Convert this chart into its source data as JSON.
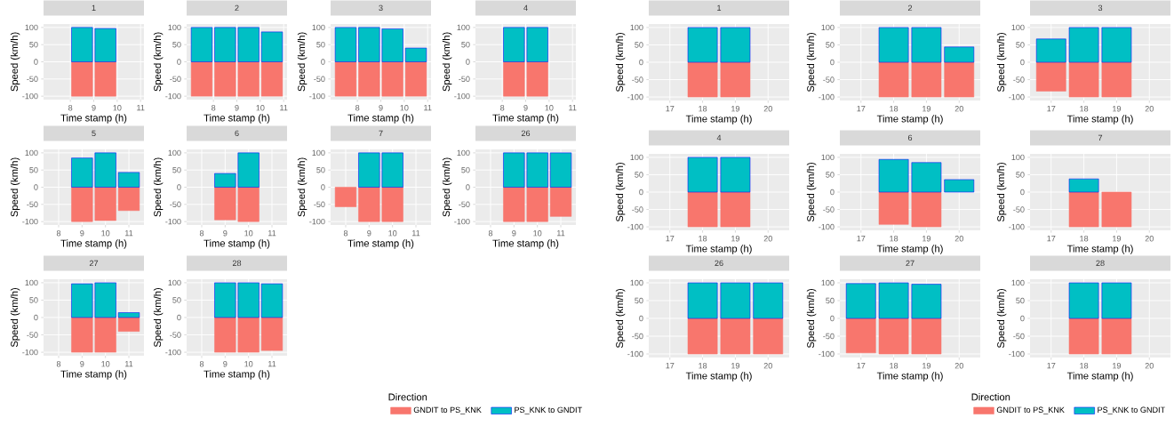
{
  "chart_data": [
    {
      "type": "bar",
      "stacked": true,
      "title": "1",
      "xlabel": "Time stamp (h)",
      "ylabel": "Speed (km/h)",
      "x": [
        8.5,
        9.5
      ],
      "series": [
        {
          "color": "#f8766d",
          "values": [
            -100,
            -100
          ]
        },
        {
          "color": "#00bfc4",
          "values": [
            100,
            97
          ]
        }
      ],
      "xlim": [
        6.855,
        11.145
      ],
      "ylim": [
        -110,
        110
      ],
      "xticks": [
        8,
        9,
        10,
        11
      ],
      "yticks": [
        -100,
        -50,
        0,
        50,
        100
      ],
      "grid": true
    },
    {
      "type": "bar",
      "stacked": true,
      "title": "2",
      "xlabel": "Time stamp (h)",
      "ylabel": "Speed (km/h)",
      "x": [
        7.5,
        8.5,
        9.5,
        10.5
      ],
      "series": [
        {
          "color": "#f8766d",
          "values": [
            -100,
            -100,
            -100,
            -100
          ]
        },
        {
          "color": "#00bfc4",
          "values": [
            100,
            100,
            100,
            87
          ]
        }
      ],
      "xlim": [
        6.855,
        11.145
      ],
      "ylim": [
        -110,
        110
      ],
      "xticks": [
        8,
        9,
        10,
        11
      ],
      "yticks": [
        -100,
        -50,
        0,
        50,
        100
      ],
      "grid": true
    },
    {
      "type": "bar",
      "stacked": true,
      "title": "3",
      "xlabel": "Time stamp (h)",
      "ylabel": "Speed (km/h)",
      "x": [
        7.5,
        8.5,
        9.5,
        10.5
      ],
      "series": [
        {
          "color": "#f8766d",
          "values": [
            -100,
            -100,
            -100,
            -100
          ]
        },
        {
          "color": "#00bfc4",
          "values": [
            100,
            100,
            96,
            40
          ]
        }
      ],
      "xlim": [
        6.855,
        11.145
      ],
      "ylim": [
        -110,
        110
      ],
      "xticks": [
        8,
        9,
        10,
        11
      ],
      "yticks": [
        -100,
        -50,
        0,
        50,
        100
      ],
      "grid": true
    },
    {
      "type": "bar",
      "stacked": true,
      "title": "4",
      "xlabel": "Time stamp (h)",
      "ylabel": "Speed (km/h)",
      "x": [
        8.5,
        9.5
      ],
      "series": [
        {
          "color": "#f8766d",
          "values": [
            -100,
            -100
          ]
        },
        {
          "color": "#00bfc4",
          "values": [
            100,
            100
          ]
        }
      ],
      "xlim": [
        6.855,
        11.145
      ],
      "ylim": [
        -110,
        110
      ],
      "xticks": [
        8,
        9,
        10,
        11
      ],
      "yticks": [
        -100,
        -50,
        0,
        50,
        100
      ],
      "grid": true
    },
    {
      "type": "bar",
      "stacked": true,
      "title": "5",
      "xlabel": "Time stamp (h)",
      "ylabel": "Speed (km/h)",
      "x": [
        9,
        10,
        11
      ],
      "series": [
        {
          "color": "#f8766d",
          "values": [
            -100,
            -97,
            -68
          ]
        },
        {
          "color": "#00bfc4",
          "values": [
            85,
            100,
            43
          ]
        }
      ],
      "xlim": [
        7.355,
        11.645
      ],
      "ylim": [
        -110,
        110
      ],
      "xticks": [
        8,
        9,
        10,
        11
      ],
      "yticks": [
        -100,
        -50,
        0,
        50,
        100
      ],
      "grid": true
    },
    {
      "type": "bar",
      "stacked": true,
      "title": "6",
      "xlabel": "Time stamp (h)",
      "ylabel": "Speed (km/h)",
      "x": [
        9,
        10
      ],
      "series": [
        {
          "color": "#f8766d",
          "values": [
            -95,
            -100
          ]
        },
        {
          "color": "#00bfc4",
          "values": [
            40,
            100
          ]
        }
      ],
      "xlim": [
        7.355,
        11.645
      ],
      "ylim": [
        -110,
        110
      ],
      "xticks": [
        8,
        9,
        10,
        11
      ],
      "yticks": [
        -100,
        -50,
        0,
        50,
        100
      ],
      "grid": true
    },
    {
      "type": "bar",
      "stacked": true,
      "title": "7",
      "xlabel": "Time stamp (h)",
      "ylabel": "Speed (km/h)",
      "x": [
        8,
        9,
        10
      ],
      "series": [
        {
          "color": "#f8766d",
          "values": [
            -57,
            -100,
            -100
          ]
        },
        {
          "color": "#00bfc4",
          "values": [
            null,
            100,
            100
          ]
        }
      ],
      "xlim": [
        7.355,
        11.645
      ],
      "ylim": [
        -110,
        110
      ],
      "xticks": [
        8,
        9,
        10,
        11
      ],
      "yticks": [
        -100,
        -50,
        0,
        50,
        100
      ],
      "grid": true
    },
    {
      "type": "bar",
      "stacked": true,
      "title": "26",
      "xlabel": "Time stamp (h)",
      "ylabel": "Speed (km/h)",
      "x": [
        9,
        10,
        11
      ],
      "series": [
        {
          "color": "#f8766d",
          "values": [
            -100,
            -100,
            -85
          ]
        },
        {
          "color": "#00bfc4",
          "values": [
            100,
            100,
            100
          ]
        }
      ],
      "xlim": [
        7.355,
        11.645
      ],
      "ylim": [
        -110,
        110
      ],
      "xticks": [
        8,
        9,
        10,
        11
      ],
      "yticks": [
        -100,
        -50,
        0,
        50,
        100
      ],
      "grid": true
    },
    {
      "type": "bar",
      "stacked": true,
      "title": "27",
      "xlabel": "Time stamp (h)",
      "ylabel": "Speed (km/h)",
      "x": [
        9,
        10,
        11
      ],
      "series": [
        {
          "color": "#f8766d",
          "values": [
            -100,
            -100,
            -40
          ]
        },
        {
          "color": "#00bfc4",
          "values": [
            97,
            100,
            14
          ]
        }
      ],
      "xlim": [
        7.355,
        11.645
      ],
      "ylim": [
        -110,
        110
      ],
      "xticks": [
        8,
        9,
        10,
        11
      ],
      "yticks": [
        -100,
        -50,
        0,
        50,
        100
      ],
      "grid": true
    },
    {
      "type": "bar",
      "stacked": true,
      "title": "28",
      "xlabel": "Time stamp (h)",
      "ylabel": "Speed (km/h)",
      "x": [
        9,
        10,
        11
      ],
      "series": [
        {
          "name": "GNDIT to PS_KNK",
          "color": "#f8766d",
          "values": [
            -100,
            -100,
            -95
          ]
        },
        {
          "name": "PS_KNK to GNDIT",
          "color": "#00bfc4",
          "values": [
            100,
            100,
            97
          ]
        }
      ],
      "xlim": [
        7.355,
        11.645
      ],
      "ylim": [
        -110,
        110
      ],
      "xticks": [
        8,
        9,
        10,
        11
      ],
      "yticks": [
        -100,
        -50,
        0,
        50,
        100
      ],
      "grid": true,
      "legend": "bottom right",
      "legend_title": "Direction"
    },
    {
      "type": "bar",
      "stacked": true,
      "title": "1",
      "xlabel": "Time stamp (h)",
      "ylabel": "Speed (km/h)",
      "x": [
        18,
        19
      ],
      "series": [
        {
          "color": "#f8766d",
          "values": [
            -100,
            -100
          ]
        },
        {
          "color": "#00bfc4",
          "values": [
            100,
            100
          ]
        }
      ],
      "xlim": [
        16.355,
        20.645
      ],
      "ylim": [
        -110,
        110
      ],
      "xticks": [
        17,
        18,
        19,
        20
      ],
      "yticks": [
        -100,
        -50,
        0,
        50,
        100
      ],
      "grid": true
    },
    {
      "type": "bar",
      "stacked": true,
      "title": "2",
      "xlabel": "Time stamp (h)",
      "ylabel": "Speed (km/h)",
      "x": [
        18,
        19,
        20
      ],
      "series": [
        {
          "color": "#f8766d",
          "values": [
            -100,
            -100,
            -100
          ]
        },
        {
          "color": "#00bfc4",
          "values": [
            100,
            100,
            44
          ]
        }
      ],
      "xlim": [
        16.355,
        20.645
      ],
      "ylim": [
        -110,
        110
      ],
      "xticks": [
        17,
        18,
        19,
        20
      ],
      "yticks": [
        -100,
        -50,
        0,
        50,
        100
      ],
      "grid": true
    },
    {
      "type": "bar",
      "stacked": true,
      "title": "3",
      "xlabel": "Time stamp (h)",
      "ylabel": "Speed (km/h)",
      "x": [
        17,
        18,
        19
      ],
      "series": [
        {
          "color": "#f8766d",
          "values": [
            -83,
            -100,
            -100
          ]
        },
        {
          "color": "#00bfc4",
          "values": [
            67,
            100,
            100
          ]
        }
      ],
      "xlim": [
        16.355,
        20.645
      ],
      "ylim": [
        -110,
        110
      ],
      "xticks": [
        17,
        18,
        19,
        20
      ],
      "yticks": [
        -100,
        -50,
        0,
        50,
        100
      ],
      "grid": true
    },
    {
      "type": "bar",
      "stacked": true,
      "title": "4",
      "xlabel": "Time stamp (h)",
      "ylabel": "Speed (km/h)",
      "x": [
        18,
        19
      ],
      "series": [
        {
          "color": "#f8766d",
          "values": [
            -100,
            -100
          ]
        },
        {
          "color": "#00bfc4",
          "values": [
            100,
            100
          ]
        }
      ],
      "xlim": [
        16.355,
        20.645
      ],
      "ylim": [
        -110,
        110
      ],
      "xticks": [
        17,
        18,
        19,
        20
      ],
      "yticks": [
        -100,
        -50,
        0,
        50,
        100
      ],
      "grid": true
    },
    {
      "type": "bar",
      "stacked": true,
      "title": "6",
      "xlabel": "Time stamp (h)",
      "ylabel": "Speed (km/h)",
      "x": [
        18,
        19,
        20
      ],
      "series": [
        {
          "color": "#f8766d",
          "values": [
            -93,
            -100,
            null
          ]
        },
        {
          "color": "#00bfc4",
          "values": [
            94,
            85,
            36
          ]
        }
      ],
      "xlim": [
        16.355,
        20.645
      ],
      "ylim": [
        -110,
        110
      ],
      "xticks": [
        17,
        18,
        19,
        20
      ],
      "yticks": [
        -100,
        -50,
        0,
        50,
        100
      ],
      "grid": true
    },
    {
      "type": "bar",
      "stacked": true,
      "title": "7",
      "xlabel": "Time stamp (h)",
      "ylabel": "Speed (km/h)",
      "x": [
        18,
        19
      ],
      "series": [
        {
          "color": "#f8766d",
          "values": [
            -100,
            -100
          ]
        },
        {
          "color": "#00bfc4",
          "values": [
            38,
            null
          ]
        }
      ],
      "xlim": [
        16.355,
        20.645
      ],
      "ylim": [
        -110,
        110
      ],
      "xticks": [
        17,
        18,
        19,
        20
      ],
      "yticks": [
        -100,
        -50,
        0,
        50,
        100
      ],
      "grid": true
    },
    {
      "type": "bar",
      "stacked": true,
      "title": "26",
      "xlabel": "Time stamp (h)",
      "ylabel": "Speed (km/h)",
      "x": [
        18,
        19,
        20
      ],
      "series": [
        {
          "color": "#f8766d",
          "values": [
            -100,
            -100,
            -100
          ]
        },
        {
          "color": "#00bfc4",
          "values": [
            100,
            100,
            100
          ]
        }
      ],
      "xlim": [
        16.355,
        20.645
      ],
      "ylim": [
        -110,
        110
      ],
      "xticks": [
        17,
        18,
        19,
        20
      ],
      "yticks": [
        -100,
        -50,
        0,
        50,
        100
      ],
      "grid": true
    },
    {
      "type": "bar",
      "stacked": true,
      "title": "27",
      "xlabel": "Time stamp (h)",
      "ylabel": "Speed (km/h)",
      "x": [
        17,
        18,
        19
      ],
      "series": [
        {
          "name": "GNDIT to PS_KNK",
          "color": "#f8766d",
          "values": [
            -97,
            -100,
            -100
          ]
        },
        {
          "name": "PS_KNK to GNDIT",
          "color": "#00bfc4",
          "values": [
            98,
            100,
            96
          ]
        }
      ],
      "xlim": [
        16.355,
        20.645
      ],
      "ylim": [
        -110,
        110
      ],
      "xticks": [
        17,
        18,
        19,
        20
      ],
      "yticks": [
        -100,
        -50,
        0,
        50,
        100
      ],
      "grid": true,
      "legend": "bottom right",
      "legend_title": "Direction"
    },
    {
      "type": "bar",
      "stacked": true,
      "title": "28",
      "xlabel": "Time stamp (h)",
      "ylabel": "Speed (km/h)",
      "x": [
        18,
        19
      ],
      "series": [
        {
          "color": "#f8766d",
          "values": [
            -100,
            -100
          ]
        },
        {
          "color": "#00bfc4",
          "values": [
            100,
            100
          ]
        }
      ],
      "xlim": [
        16.355,
        20.645
      ],
      "ylim": [
        -110,
        110
      ],
      "xticks": [
        17,
        18,
        19,
        20
      ],
      "yticks": [
        -100,
        -50,
        0,
        50,
        100
      ],
      "grid": true
    }
  ]
}
